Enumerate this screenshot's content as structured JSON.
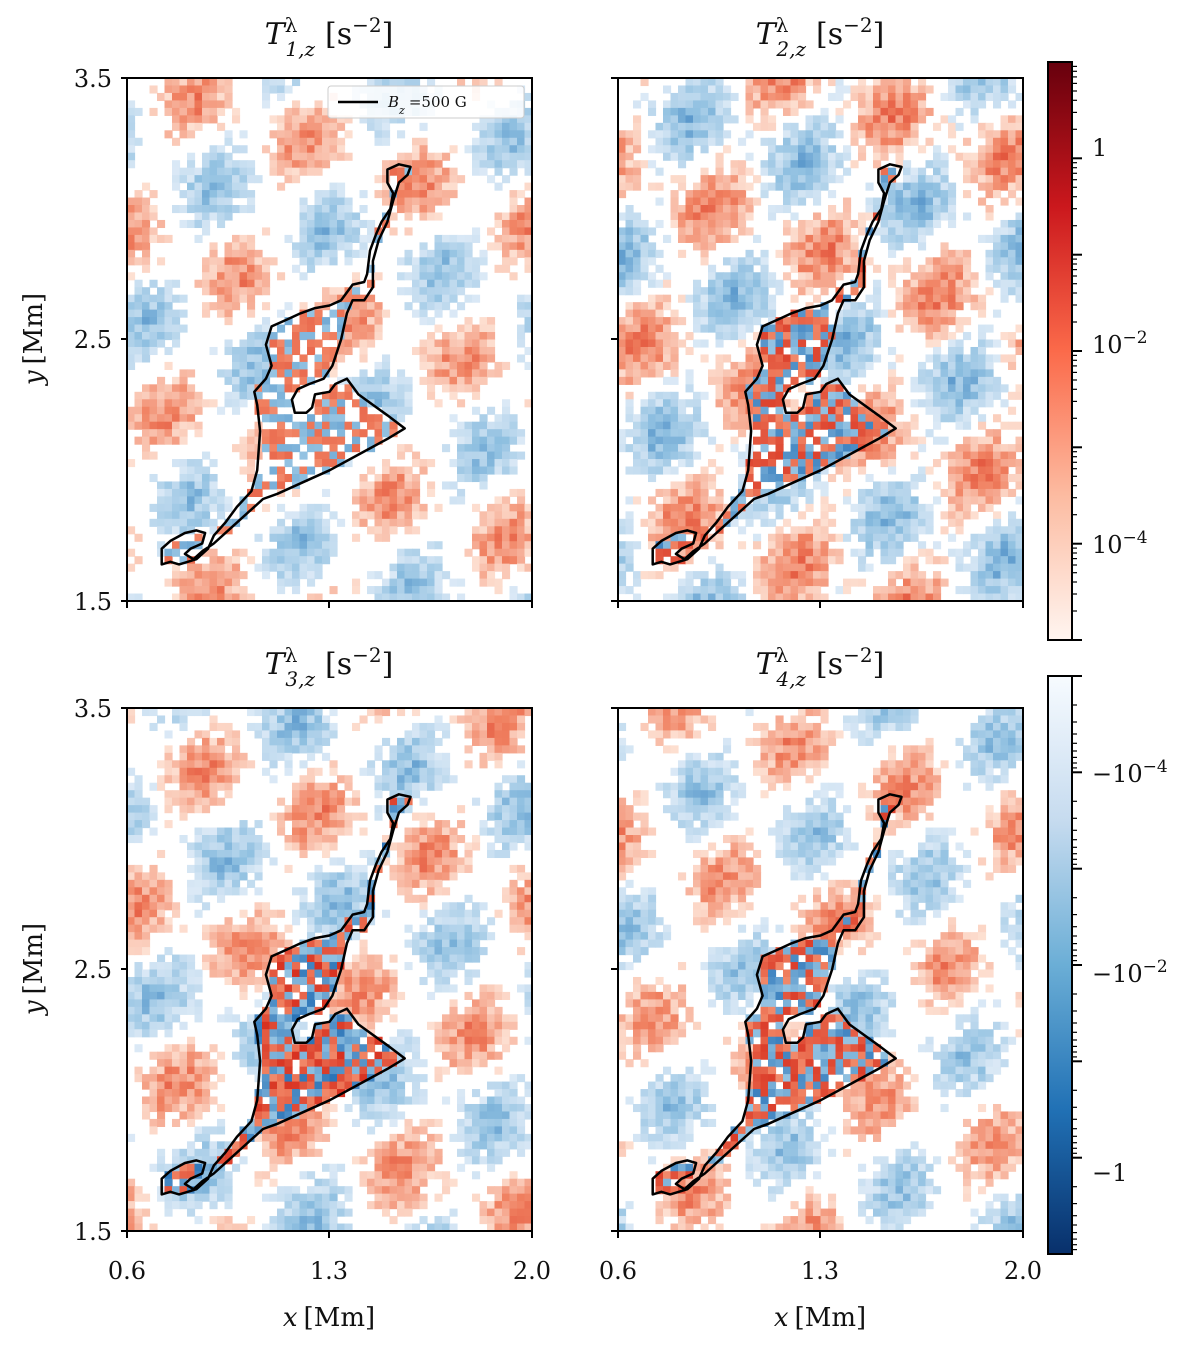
{
  "chart_data": {
    "type": "heatmap",
    "panels": [
      {
        "title_main": "T",
        "title_sup": "λ",
        "title_sub": "1,z",
        "title_units": "[s",
        "title_exp": "−2",
        "title_close": "]",
        "density": 0.55,
        "inside_intensity": 0.35
      },
      {
        "title_main": "T",
        "title_sup": "λ",
        "title_sub": "2,z",
        "title_units": "[s",
        "title_exp": "−2",
        "title_close": "]",
        "density": 0.75,
        "inside_intensity": 0.8
      },
      {
        "title_main": "T",
        "title_sup": "λ",
        "title_sub": "3,z",
        "title_units": "[s",
        "title_exp": "−2",
        "title_close": "]",
        "density": 0.6,
        "inside_intensity": 1.0
      },
      {
        "title_main": "T",
        "title_sup": "λ",
        "title_sub": "4,z",
        "title_units": "[s",
        "title_exp": "−2",
        "title_close": "]",
        "density": 0.5,
        "inside_intensity": 0.85
      }
    ],
    "x_axis": {
      "label_var": "x",
      "label_unit": "[Mm]",
      "range": [
        0.6,
        2.0
      ],
      "ticks": [
        "0.6",
        "1.3",
        "2.0"
      ]
    },
    "y_axis": {
      "label_var": "y",
      "label_unit": "[Mm]",
      "range": [
        1.5,
        3.5
      ],
      "ticks": [
        "1.5",
        "2.5",
        "3.5"
      ]
    },
    "legend": {
      "var": "B",
      "sub": "z",
      "text": "=500 G",
      "placement": "top-right"
    },
    "contour_level": "500 G",
    "contour_path_mm": [
      [
        0.75,
        1.65
      ],
      [
        0.72,
        1.64
      ],
      [
        0.72,
        1.7
      ],
      [
        0.75,
        1.73
      ],
      [
        0.8,
        1.76
      ],
      [
        0.84,
        1.77
      ],
      [
        0.87,
        1.76
      ],
      [
        0.86,
        1.72
      ],
      [
        0.82,
        1.7
      ],
      [
        0.8,
        1.68
      ],
      [
        0.83,
        1.66
      ],
      [
        0.86,
        1.69
      ],
      [
        0.9,
        1.72
      ],
      [
        0.96,
        1.78
      ],
      [
        1.02,
        1.84
      ],
      [
        1.07,
        1.89
      ],
      [
        1.12,
        1.91
      ],
      [
        1.2,
        1.95
      ],
      [
        1.3,
        2.0
      ],
      [
        1.4,
        2.06
      ],
      [
        1.5,
        2.12
      ],
      [
        1.56,
        2.16
      ],
      [
        1.5,
        2.21
      ],
      [
        1.4,
        2.29
      ],
      [
        1.36,
        2.35
      ],
      [
        1.32,
        2.33
      ],
      [
        1.3,
        2.3
      ],
      [
        1.25,
        2.29
      ],
      [
        1.24,
        2.24
      ],
      [
        1.22,
        2.22
      ],
      [
        1.18,
        2.22
      ],
      [
        1.17,
        2.27
      ],
      [
        1.19,
        2.31
      ],
      [
        1.23,
        2.33
      ],
      [
        1.28,
        2.35
      ],
      [
        1.31,
        2.4
      ],
      [
        1.34,
        2.5
      ],
      [
        1.36,
        2.6
      ],
      [
        1.38,
        2.65
      ],
      [
        1.42,
        2.65
      ],
      [
        1.45,
        2.7
      ],
      [
        1.45,
        2.8
      ],
      [
        1.47,
        2.88
      ],
      [
        1.5,
        2.95
      ],
      [
        1.52,
        3.03
      ],
      [
        1.54,
        3.1
      ],
      [
        1.57,
        3.13
      ],
      [
        1.58,
        3.16
      ],
      [
        1.54,
        3.17
      ],
      [
        1.5,
        3.15
      ],
      [
        1.5,
        3.1
      ],
      [
        1.52,
        3.06
      ],
      [
        1.51,
        3.0
      ],
      [
        1.48,
        2.95
      ],
      [
        1.46,
        2.9
      ],
      [
        1.44,
        2.84
      ],
      [
        1.43,
        2.75
      ],
      [
        1.42,
        2.72
      ],
      [
        1.38,
        2.71
      ],
      [
        1.36,
        2.68
      ],
      [
        1.34,
        2.65
      ],
      [
        1.3,
        2.63
      ],
      [
        1.25,
        2.62
      ],
      [
        1.2,
        2.6
      ],
      [
        1.16,
        2.58
      ],
      [
        1.1,
        2.55
      ],
      [
        1.08,
        2.48
      ],
      [
        1.1,
        2.4
      ],
      [
        1.08,
        2.35
      ],
      [
        1.04,
        2.3
      ],
      [
        1.05,
        2.25
      ],
      [
        1.06,
        2.15
      ],
      [
        1.05,
        2.0
      ],
      [
        1.03,
        1.92
      ],
      [
        0.98,
        1.86
      ],
      [
        0.94,
        1.8
      ],
      [
        0.9,
        1.75
      ],
      [
        0.88,
        1.7
      ],
      [
        0.84,
        1.66
      ],
      [
        0.78,
        1.64
      ],
      [
        0.75,
        1.65
      ]
    ],
    "colorbar_positive": {
      "ticks": [
        "1",
        "10",
        "10"
      ],
      "tick_exps": [
        "",
        "−2",
        "−4"
      ],
      "tick_values": [
        1,
        0.01,
        0.0001
      ],
      "log_range": [
        -5,
        1
      ]
    },
    "colorbar_negative": {
      "ticks": [
        "−10",
        "−10",
        "−1"
      ],
      "tick_exps": [
        "−4",
        "−2",
        ""
      ],
      "tick_values": [
        -0.0001,
        -0.01,
        -1
      ],
      "log_range": [
        -5,
        1
      ]
    },
    "colors": {
      "positive_max": "#67000d",
      "positive_mid": "#e03a2f",
      "positive_low": "#fee5d9",
      "negative_max": "#08306b",
      "negative_mid": "#3f8cc4",
      "negative_low": "#f2f7fc",
      "contour": "#000000"
    }
  }
}
